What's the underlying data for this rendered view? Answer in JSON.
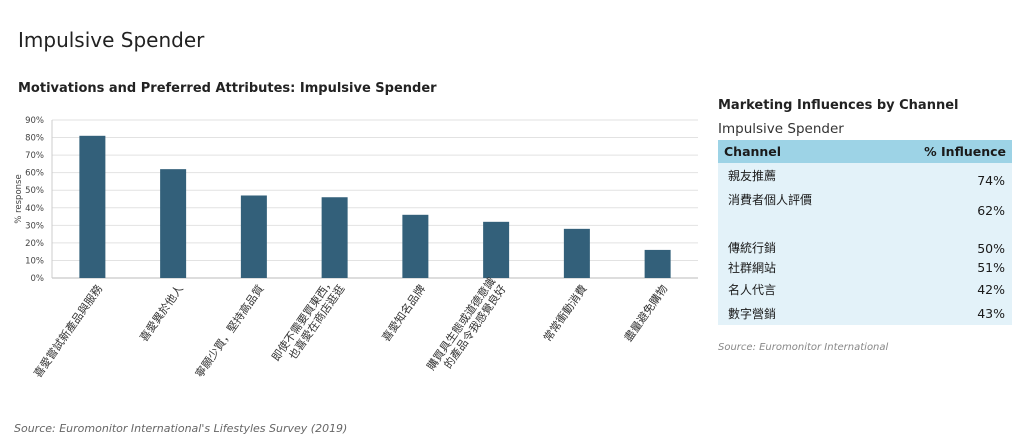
{
  "page": {
    "title": "Impulsive Spender"
  },
  "source_main": "Source: Euromonitor International's Lifestyles Survey (2019)",
  "chart_data": {
    "type": "bar",
    "title": "Motivations and Preferred Attributes: Impulsive Spender",
    "ylabel": "% response",
    "xlabel": "",
    "ylim": [
      0,
      90
    ],
    "yticks": [
      "0%",
      "10%",
      "20%",
      "30%",
      "40%",
      "50%",
      "60%",
      "70%",
      "80%",
      "90%"
    ],
    "grid": true,
    "bar_color": "#33607a",
    "categories": [
      [
        "喜愛嘗試新產品與服務"
      ],
      [
        "喜愛異於他人"
      ],
      [
        "寧願少買，堅持高品質"
      ],
      [
        "即使不需要買東西，",
        "也喜愛在商店逛逛"
      ],
      [
        "喜愛知名品牌"
      ],
      [
        "購買具生態或道德意識",
        "的產品令我感覺良好"
      ],
      [
        "常常衝動消費"
      ],
      [
        "盡量避免購物"
      ]
    ],
    "values": [
      81,
      62,
      47,
      46,
      36,
      32,
      28,
      16
    ]
  },
  "influence_panel": {
    "title": "Marketing Influences by Channel",
    "subtitle": "Impulsive Spender",
    "col_channel": "Channel",
    "col_influence": "% Influence",
    "rows": [
      {
        "channel": "親友推薦",
        "value": "74%"
      },
      {
        "channel": "消費者個人評價",
        "value": "62%"
      },
      {
        "channel": "傳統行銷",
        "value": "50%"
      },
      {
        "channel": "社群網站",
        "value": "51%"
      },
      {
        "channel": "名人代言",
        "value": "42%"
      },
      {
        "channel": "數字營銷",
        "value": "43%"
      }
    ],
    "source": "Source: Euromonitor International",
    "header_color": "#9dd3e6",
    "row_color": "#e3f2f9"
  }
}
